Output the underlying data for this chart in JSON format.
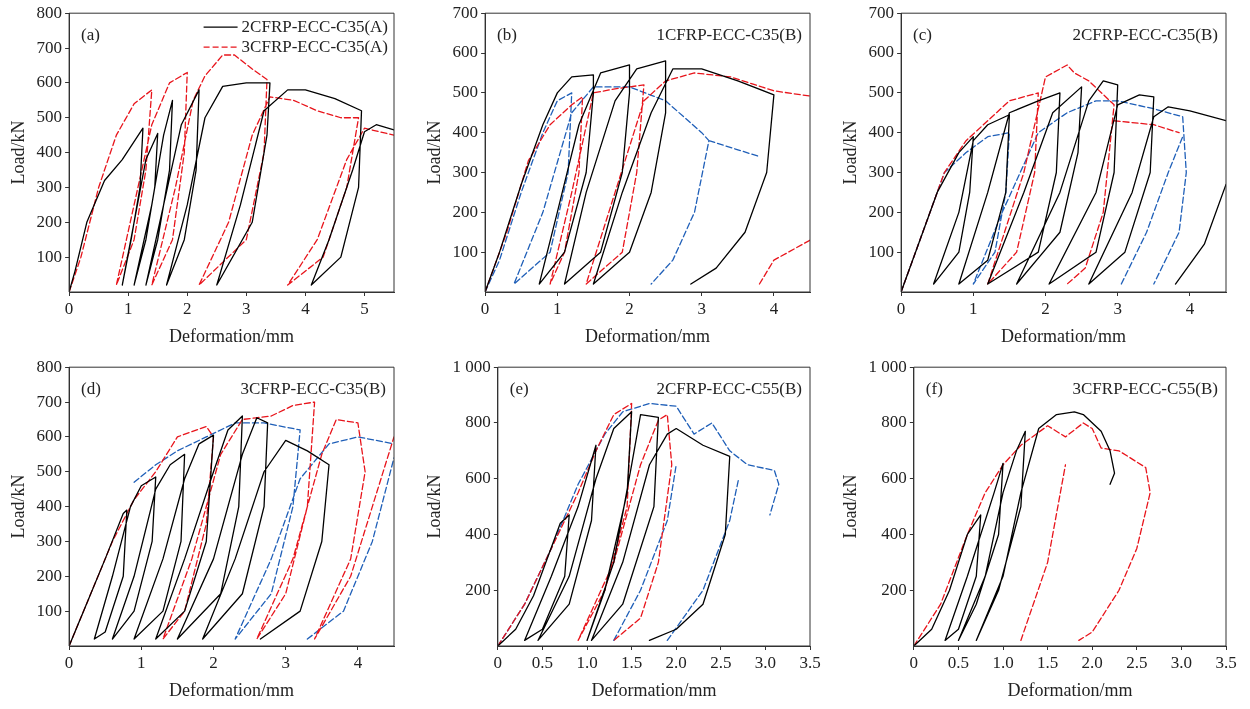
{
  "chart_data": [
    {
      "type": "line",
      "annotations": [
        "(a)"
      ],
      "xlabel": "Deformation/mm",
      "ylabel": "Load/kN",
      "xlim": [
        0,
        5.5
      ],
      "ylim": [
        0,
        800
      ],
      "xticks": [
        {
          "value": 0,
          "label": "0"
        },
        1,
        2,
        3,
        4,
        5
      ],
      "yticks": [
        100,
        200,
        300,
        400,
        500,
        600,
        700,
        800
      ],
      "grid": false,
      "legend": "top right",
      "marker": "none",
      "series": [
        {
          "name": "2CFRP-ECC-C35(A)",
          "color": "#000000",
          "line_style": "solid",
          "x": [
            0,
            0.1,
            0.3,
            0.6,
            0.9,
            1.25,
            1.2,
            1.05,
            0.9,
            1.1,
            1.3,
            1.5,
            1.45,
            1.3,
            1.1,
            1.4,
            1.6,
            1.75,
            1.7,
            1.5,
            1.3,
            1.6,
            1.9,
            2.2,
            2.15,
            1.95,
            1.65,
            2.0,
            2.3,
            2.6,
            3.0,
            3.4,
            3.35,
            3.1,
            2.5,
            2.9,
            3.3,
            3.7,
            4.0,
            4.5,
            4.95,
            4.9,
            4.6,
            4.1,
            4.4,
            4.8,
            5.0,
            5.2,
            5.5
          ],
          "values": [
            0,
            60,
            200,
            320,
            380,
            470,
            300,
            150,
            20,
            200,
            380,
            455,
            300,
            150,
            20,
            250,
            450,
            550,
            350,
            150,
            20,
            250,
            480,
            580,
            350,
            150,
            20,
            250,
            500,
            590,
            600,
            600,
            450,
            200,
            20,
            250,
            520,
            580,
            580,
            555,
            520,
            300,
            100,
            20,
            150,
            350,
            460,
            480,
            465
          ]
        },
        {
          "name": "3CFRP-ECC-C35(A)",
          "color": "#e8141b",
          "line_style": "dashed",
          "x": [
            0,
            0.2,
            0.5,
            0.8,
            1.1,
            1.4,
            1.3,
            1.1,
            0.8,
            1.1,
            1.4,
            1.7,
            2.0,
            1.95,
            1.75,
            1.4,
            1.8,
            2.1,
            2.3,
            2.6,
            2.8,
            3.1,
            3.35,
            3.3,
            3.0,
            2.2,
            2.7,
            3.1,
            3.4,
            3.8,
            4.2,
            4.6,
            4.9,
            4.7,
            4.3,
            3.7,
            4.2,
            4.7,
            5.0,
            5.5
          ],
          "values": [
            0,
            100,
            300,
            450,
            540,
            580,
            350,
            150,
            20,
            250,
            480,
            600,
            630,
            400,
            150,
            20,
            300,
            550,
            620,
            680,
            680,
            640,
            610,
            400,
            150,
            20,
            200,
            450,
            560,
            550,
            520,
            500,
            500,
            300,
            100,
            20,
            150,
            380,
            470,
            450
          ]
        }
      ]
    },
    {
      "type": "line",
      "title": "1CFRP-ECC-C35(B)",
      "annotations": [
        "(b)"
      ],
      "xlabel": "Deformation/mm",
      "ylabel": "Load/kN",
      "xlim": [
        0,
        4.5
      ],
      "ylim": [
        0,
        700
      ],
      "xticks": [
        {
          "value": 0,
          "label": "0"
        },
        1,
        2,
        3,
        4
      ],
      "yticks": [
        100,
        200,
        300,
        400,
        500,
        600,
        700
      ],
      "grid": false,
      "marker": "none",
      "series": [
        {
          "color": "#000000",
          "line_style": "solid",
          "x": [
            0,
            0.2,
            0.5,
            0.8,
            1.0,
            1.2,
            1.5,
            1.5,
            1.4,
            1.1,
            0.75,
            1.0,
            1.3,
            1.6,
            2.0,
            2.0,
            1.9,
            1.6,
            1.1,
            1.4,
            1.8,
            2.1,
            2.5,
            2.5,
            2.3,
            2.0,
            1.5,
            1.9,
            2.3,
            2.6,
            3.0,
            3.5,
            4.0,
            3.9,
            3.6,
            3.2,
            2.85
          ],
          "values": [
            0,
            100,
            270,
            420,
            500,
            540,
            545,
            500,
            300,
            100,
            20,
            200,
            420,
            550,
            570,
            500,
            300,
            100,
            20,
            250,
            480,
            560,
            580,
            450,
            250,
            100,
            20,
            250,
            450,
            560,
            560,
            530,
            495,
            300,
            150,
            60,
            20
          ]
        },
        {
          "color": "#e8141b",
          "line_style": "dashed",
          "x": [
            0,
            0.3,
            0.6,
            0.9,
            1.2,
            1.35,
            1.3,
            1.1,
            0.9,
            1.2,
            1.5,
            1.8,
            2.2,
            2.1,
            1.9,
            1.4,
            1.8,
            2.2,
            2.5,
            2.9,
            3.4,
            4.0,
            4.5,
            null,
            3.8,
            4.0,
            4.5
          ],
          "values": [
            0,
            150,
            330,
            420,
            470,
            490,
            300,
            100,
            20,
            250,
            500,
            510,
            520,
            300,
            100,
            20,
            250,
            480,
            530,
            550,
            540,
            505,
            492,
            null,
            20,
            80,
            130
          ]
        },
        {
          "color": "#1f5fb8",
          "line_style": "dashed",
          "x": [
            0,
            0.2,
            0.5,
            0.8,
            1.0,
            1.2,
            1.15,
            0.9,
            0.4,
            0.8,
            1.2,
            1.5,
            2.0,
            2.5,
            3.0,
            3.1,
            2.9,
            2.6,
            2.3,
            null,
            3.1,
            3.8
          ],
          "values": [
            0,
            80,
            250,
            400,
            480,
            500,
            300,
            100,
            20,
            200,
            450,
            515,
            515,
            480,
            400,
            380,
            200,
            80,
            20,
            null,
            380,
            340
          ]
        }
      ]
    },
    {
      "type": "line",
      "title": "2CFRP-ECC-C35(B)",
      "annotations": [
        "(c)"
      ],
      "xlabel": "Deformation/mm",
      "ylabel": "Load/kN",
      "xlim": [
        0,
        4.5
      ],
      "ylim": [
        0,
        700
      ],
      "xticks": [
        {
          "value": 0,
          "label": "0"
        },
        1,
        2,
        3,
        4
      ],
      "yticks": [
        100,
        200,
        300,
        400,
        500,
        600,
        700
      ],
      "grid": false,
      "marker": "none",
      "series": [
        {
          "color": "#000000",
          "line_style": "solid",
          "x": [
            0,
            0.2,
            0.5,
            0.8,
            1.0,
            0.95,
            0.8,
            0.45,
            0.8,
            1.0,
            1.2,
            1.5,
            1.45,
            1.2,
            0.8,
            1.2,
            1.5,
            1.9,
            2.2,
            2.15,
            1.9,
            1.2,
            1.7,
            2.1,
            2.5,
            2.45,
            2.2,
            1.6,
            2.2,
            2.6,
            2.8,
            3.0,
            2.95,
            2.7,
            2.05,
            2.7,
            3.0,
            3.3,
            3.5,
            3.45,
            3.1,
            2.6,
            3.2,
            3.5,
            3.7,
            4.0,
            4.5,
            null,
            3.8,
            4.2,
            4.5
          ],
          "values": [
            0,
            100,
            250,
            350,
            390,
            250,
            100,
            20,
            200,
            380,
            420,
            445,
            250,
            80,
            20,
            250,
            450,
            480,
            500,
            300,
            100,
            20,
            250,
            450,
            515,
            350,
            150,
            20,
            250,
            480,
            530,
            520,
            300,
            100,
            20,
            250,
            470,
            495,
            490,
            300,
            100,
            20,
            250,
            440,
            465,
            455,
            430,
            null,
            20,
            120,
            270
          ]
        },
        {
          "color": "#e8141b",
          "line_style": "dashed",
          "x": [
            0,
            0.3,
            0.6,
            0.9,
            1.2,
            1.5,
            1.9,
            1.85,
            1.6,
            1.2,
            1.7,
            2.0,
            2.3,
            2.4,
            2.6,
            2.95,
            2.8,
            2.55,
            2.3,
            null,
            2.95,
            3.5,
            3.85
          ],
          "values": [
            0,
            150,
            300,
            380,
            430,
            480,
            500,
            300,
            100,
            20,
            300,
            540,
            570,
            550,
            530,
            470,
            200,
            60,
            20,
            null,
            430,
            420,
            400
          ]
        },
        {
          "color": "#1f5fb8",
          "line_style": "dashed",
          "x": [
            0,
            0.3,
            0.6,
            0.9,
            1.2,
            1.5,
            1.45,
            1.3,
            1.0,
            1.4,
            1.9,
            2.3,
            2.7,
            3.0,
            3.5,
            3.9,
            3.95,
            3.85,
            3.5,
            null,
            3.05,
            3.4,
            3.7,
            3.9
          ],
          "values": [
            0,
            150,
            300,
            350,
            390,
            400,
            250,
            100,
            20,
            200,
            400,
            450,
            480,
            480,
            460,
            440,
            300,
            150,
            20,
            null,
            20,
            150,
            300,
            390
          ]
        }
      ]
    },
    {
      "type": "line",
      "title": "3CFRP-ECC-C35(B)",
      "annotations": [
        "(d)"
      ],
      "xlabel": "Deformation/mm",
      "ylabel": "Load/kN",
      "xlim": [
        0,
        4.5
      ],
      "ylim": [
        0,
        800
      ],
      "xticks": [
        {
          "value": 0,
          "label": "0"
        },
        1,
        2,
        3,
        4
      ],
      "yticks": [
        100,
        200,
        300,
        400,
        500,
        600,
        700,
        800
      ],
      "grid": false,
      "marker": "none",
      "series": [
        {
          "color": "#000000",
          "line_style": "solid",
          "x": [
            0,
            0.2,
            0.5,
            0.75,
            0.8,
            0.75,
            0.5,
            0.35,
            0.6,
            0.85,
            1.0,
            1.2,
            1.15,
            0.9,
            0.6,
            0.9,
            1.2,
            1.4,
            1.6,
            1.55,
            1.3,
            0.9,
            1.3,
            1.6,
            1.8,
            2.0,
            1.9,
            1.6,
            1.2,
            1.6,
            2.0,
            2.2,
            2.4,
            2.35,
            2.1,
            1.5,
            2.0,
            2.4,
            2.6,
            2.75,
            2.7,
            2.4,
            1.85,
            2.3,
            2.7,
            3.0,
            3.3,
            3.6,
            3.5,
            3.2,
            2.65
          ],
          "values": [
            0,
            100,
            250,
            380,
            390,
            200,
            40,
            20,
            200,
            400,
            460,
            485,
            300,
            100,
            20,
            200,
            450,
            520,
            550,
            300,
            100,
            20,
            250,
            480,
            580,
            605,
            300,
            100,
            20,
            250,
            500,
            620,
            660,
            400,
            150,
            20,
            250,
            550,
            655,
            640,
            400,
            150,
            20,
            250,
            500,
            590,
            560,
            520,
            300,
            100,
            20
          ]
        },
        {
          "color": "#e8141b",
          "line_style": "dashed",
          "x": [
            0,
            0.3,
            0.6,
            0.9,
            1.2,
            1.5,
            1.9,
            2.0,
            1.9,
            1.6,
            1.3,
            1.7,
            2.1,
            2.4,
            2.8,
            3.1,
            3.4,
            3.3,
            3.0,
            2.6,
            3.1,
            3.5,
            3.7,
            4.0,
            4.1,
            3.9,
            3.4,
            3.9,
            4.2,
            4.5
          ],
          "values": [
            0,
            150,
            300,
            420,
            500,
            600,
            630,
            600,
            350,
            100,
            20,
            250,
            550,
            650,
            660,
            690,
            700,
            400,
            150,
            20,
            250,
            550,
            650,
            640,
            500,
            250,
            20,
            200,
            400,
            600
          ]
        },
        {
          "color": "#1f5fb8",
          "line_style": "dashed",
          "x": [
            0.9,
            1.2,
            1.5,
            1.9,
            2.3,
            2.7,
            3.2,
            3.1,
            2.8,
            2.3,
            2.8,
            3.2,
            3.6,
            4.0,
            4.5,
            null,
            3.3,
            3.8,
            4.2,
            4.5
          ],
          "values": [
            470,
            520,
            560,
            600,
            640,
            640,
            620,
            400,
            150,
            20,
            250,
            480,
            580,
            600,
            580,
            null,
            20,
            100,
            300,
            540
          ]
        }
      ]
    },
    {
      "type": "line",
      "title": "2CFRP-ECC-C55(B)",
      "annotations": [
        "(e)"
      ],
      "xlabel": "Deformation/mm",
      "ylabel": "Load/kN",
      "xlim": [
        0,
        3.5
      ],
      "ylim": [
        0,
        1000
      ],
      "xticks": [
        {
          "value": 0,
          "label": "0"
        },
        0.5,
        {
          "value": 1,
          "label": "1.0"
        },
        1.5,
        {
          "value": 2,
          "label": "2.0"
        },
        2.5,
        {
          "value": 3,
          "label": "3.0"
        },
        3.5
      ],
      "yticks": [
        200,
        400,
        600,
        800,
        {
          "value": 1000,
          "label": "1 000"
        }
      ],
      "grid": false,
      "marker": "none",
      "series": [
        {
          "color": "#000000",
          "line_style": "solid",
          "x": [
            0,
            0.2,
            0.4,
            0.7,
            0.8,
            0.75,
            0.5,
            0.3,
            0.6,
            0.9,
            1.1,
            1.05,
            0.8,
            0.45,
            0.8,
            1.1,
            1.3,
            1.5,
            1.45,
            1.2,
            1.0,
            1.3,
            1.5,
            1.6,
            1.8,
            1.75,
            1.4,
            1.05,
            1.4,
            1.7,
            1.9,
            2.0,
            2.3,
            2.6,
            2.55,
            2.3,
            2.0,
            1.7
          ],
          "values": [
            0,
            60,
            180,
            440,
            470,
            250,
            60,
            20,
            250,
            500,
            720,
            450,
            150,
            20,
            250,
            600,
            780,
            840,
            550,
            200,
            20,
            300,
            650,
            830,
            820,
            500,
            150,
            20,
            300,
            650,
            760,
            780,
            720,
            680,
            400,
            150,
            60,
            20
          ]
        },
        {
          "color": "#e8141b",
          "line_style": "dashed",
          "x": [
            0,
            0.3,
            0.6,
            0.9,
            1.1,
            1.3,
            1.5,
            1.45,
            1.2,
            0.9,
            1.3,
            1.6,
            1.8,
            1.9,
            1.95,
            1.8,
            1.6,
            1.3
          ],
          "values": [
            0,
            150,
            350,
            550,
            700,
            830,
            870,
            500,
            200,
            20,
            300,
            650,
            810,
            830,
            650,
            300,
            100,
            20
          ]
        },
        {
          "color": "#1f5fb8",
          "line_style": "dashed",
          "x": [
            0,
            0.3,
            0.6,
            0.9,
            1.2,
            1.4,
            1.7,
            2.0,
            2.2,
            2.4,
            2.6,
            2.8,
            3.1,
            3.15,
            3.05,
            null,
            1.3,
            1.6,
            1.9,
            2.0,
            null,
            1.9,
            2.3,
            2.6,
            2.7
          ],
          "values": [
            0,
            150,
            350,
            580,
            760,
            840,
            870,
            860,
            760,
            800,
            700,
            650,
            630,
            580,
            470,
            null,
            20,
            200,
            450,
            650,
            null,
            20,
            200,
            450,
            600
          ]
        }
      ]
    },
    {
      "type": "line",
      "title": "3CFRP-ECC-C55(B)",
      "annotations": [
        "(f)"
      ],
      "xlabel": "Deformation/mm",
      "ylabel": "Load/kN",
      "xlim": [
        0,
        3.5
      ],
      "ylim": [
        0,
        1000
      ],
      "xticks": [
        {
          "value": 0,
          "label": "0"
        },
        0.5,
        {
          "value": 1,
          "label": "1.0"
        },
        1.5,
        {
          "value": 2,
          "label": "2.0"
        },
        2.5,
        {
          "value": 3,
          "label": "3.0"
        },
        3.5
      ],
      "yticks": [
        200,
        400,
        600,
        800,
        {
          "value": 1000,
          "label": "1 000"
        }
      ],
      "grid": false,
      "marker": "none",
      "series": [
        {
          "color": "#000000",
          "line_style": "solid",
          "x": [
            0,
            0.2,
            0.4,
            0.6,
            0.75,
            0.7,
            0.5,
            0.35,
            0.6,
            0.9,
            1.0,
            0.95,
            0.7,
            0.5,
            0.8,
            1.0,
            1.15,
            1.25,
            1.2,
            0.95,
            0.7,
            1.0,
            1.2,
            1.4,
            1.6,
            1.8,
            1.9,
            2.1,
            2.2,
            2.25,
            2.2
          ],
          "values": [
            0,
            60,
            200,
            400,
            470,
            250,
            60,
            20,
            250,
            550,
            655,
            400,
            150,
            20,
            250,
            550,
            700,
            770,
            500,
            200,
            20,
            250,
            550,
            780,
            830,
            840,
            830,
            770,
            700,
            620,
            580
          ]
        },
        {
          "color": "#e8141b",
          "line_style": "dashed",
          "x": [
            0,
            0.3,
            0.6,
            0.8,
            1.0,
            1.2,
            1.5,
            1.7,
            1.9,
            2.0,
            2.1,
            2.3,
            2.6,
            2.65,
            2.5,
            2.3,
            2.1,
            2.0,
            1.85,
            null,
            1.2,
            1.5,
            1.7
          ],
          "values": [
            0,
            150,
            400,
            550,
            650,
            720,
            790,
            750,
            800,
            780,
            710,
            700,
            640,
            550,
            350,
            200,
            100,
            50,
            20,
            null,
            20,
            300,
            650
          ]
        }
      ]
    }
  ]
}
